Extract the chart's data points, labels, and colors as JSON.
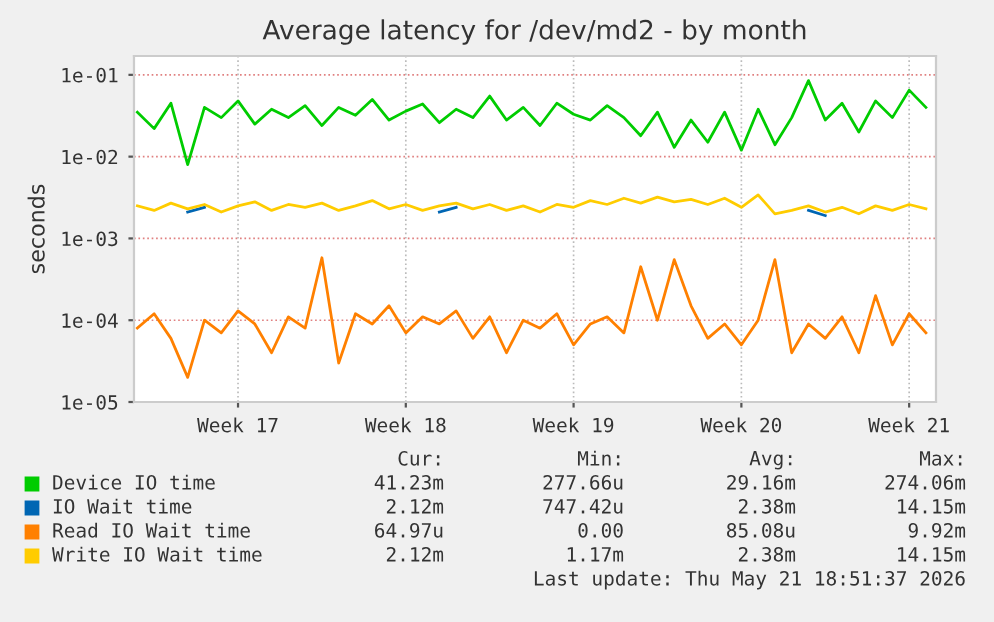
{
  "chart_data": {
    "type": "line",
    "title": "Average latency for /dev/md2 - by month",
    "ylabel": "seconds",
    "categories": [
      null,
      null,
      null,
      null,
      null,
      null,
      "Week 17",
      null,
      null,
      null,
      null,
      null,
      null,
      null,
      null,
      null,
      "Week 18",
      null,
      null,
      null,
      null,
      null,
      null,
      null,
      null,
      null,
      "Week 19",
      null,
      null,
      null,
      null,
      null,
      null,
      null,
      null,
      null,
      "Week 20",
      null,
      null,
      null,
      null,
      null,
      null,
      null,
      null,
      null,
      "Week 21",
      null
    ],
    "series": [
      {
        "name": "Device IO time",
        "color": "#00cc00",
        "values": [
          0.035,
          0.022,
          0.045,
          0.008,
          0.04,
          0.03,
          0.048,
          0.025,
          0.038,
          0.03,
          0.042,
          0.024,
          0.04,
          0.032,
          0.05,
          0.028,
          0.036,
          0.044,
          0.026,
          0.038,
          0.03,
          0.055,
          0.028,
          0.04,
          0.024,
          0.045,
          0.033,
          0.028,
          0.042,
          0.03,
          0.018,
          0.035,
          0.013,
          0.028,
          0.015,
          0.035,
          0.012,
          0.038,
          0.014,
          0.03,
          0.085,
          0.028,
          0.045,
          0.02,
          0.048,
          0.03,
          0.065,
          0.04
        ]
      },
      {
        "name": "IO Wait time",
        "color": "#0066b3",
        "values": [
          null,
          null,
          null,
          0.0021,
          0.0024,
          null,
          null,
          null,
          null,
          null,
          null,
          null,
          null,
          null,
          null,
          null,
          null,
          null,
          0.0021,
          0.0024,
          null,
          null,
          null,
          null,
          null,
          null,
          null,
          null,
          null,
          null,
          null,
          null,
          null,
          null,
          null,
          null,
          null,
          null,
          null,
          null,
          0.0022,
          0.0019,
          null,
          null,
          null,
          null,
          null,
          null
        ]
      },
      {
        "name": "Read IO Wait time",
        "color": "#ff8000",
        "values": [
          8e-05,
          0.00012,
          6e-05,
          2e-05,
          0.0001,
          7e-05,
          0.00013,
          9e-05,
          4e-05,
          0.00011,
          8e-05,
          0.00058,
          3e-05,
          0.00012,
          9e-05,
          0.00015,
          7e-05,
          0.00011,
          9e-05,
          0.00013,
          6e-05,
          0.00011,
          4e-05,
          0.0001,
          8e-05,
          0.00012,
          5e-05,
          9e-05,
          0.00011,
          7e-05,
          0.00045,
          0.0001,
          0.00055,
          0.00015,
          6e-05,
          9e-05,
          5e-05,
          0.0001,
          0.00055,
          4e-05,
          9e-05,
          6e-05,
          0.00011,
          4e-05,
          0.0002,
          5e-05,
          0.00012,
          7e-05
        ]
      },
      {
        "name": "Write IO Wait time",
        "color": "#ffcc00",
        "values": [
          0.0025,
          0.0022,
          0.0027,
          0.0023,
          0.0026,
          0.0021,
          0.0025,
          0.0028,
          0.0022,
          0.0026,
          0.0024,
          0.0027,
          0.0022,
          0.0025,
          0.0029,
          0.0023,
          0.0026,
          0.0022,
          0.0025,
          0.0027,
          0.0023,
          0.0026,
          0.0022,
          0.0025,
          0.0021,
          0.0026,
          0.0024,
          0.0029,
          0.0026,
          0.0031,
          0.0027,
          0.0032,
          0.0028,
          0.003,
          0.0026,
          0.0031,
          0.0024,
          0.0034,
          0.002,
          0.0022,
          0.0025,
          0.0021,
          0.0024,
          0.002,
          0.0025,
          0.0022,
          0.0026,
          0.0023
        ]
      }
    ],
    "log": "y",
    "ylim": [
      1e-05,
      0.17
    ],
    "yticks": [
      {
        "value": 1e-05,
        "label": "1e-05"
      },
      {
        "value": 0.0001,
        "label": "1e-04"
      },
      {
        "value": 0.001,
        "label": "1e-03"
      },
      {
        "value": 0.01,
        "label": "1e-02"
      },
      {
        "value": 0.1,
        "label": "1e-01"
      }
    ],
    "grid": true,
    "legend": "bottom",
    "annotations": [
      "Cur:",
      "Min:",
      "Avg:",
      "Max:",
      "41.23m",
      "277.66u",
      "29.16m",
      "274.06m",
      "2.12m",
      "747.42u",
      "2.38m",
      "14.15m",
      "64.97u",
      "0.00",
      "85.08u",
      "9.92m",
      "2.12m",
      "1.17m",
      "2.38m",
      "14.15m",
      "Last update: Thu May 21 18:51:37 2026"
    ]
  }
}
